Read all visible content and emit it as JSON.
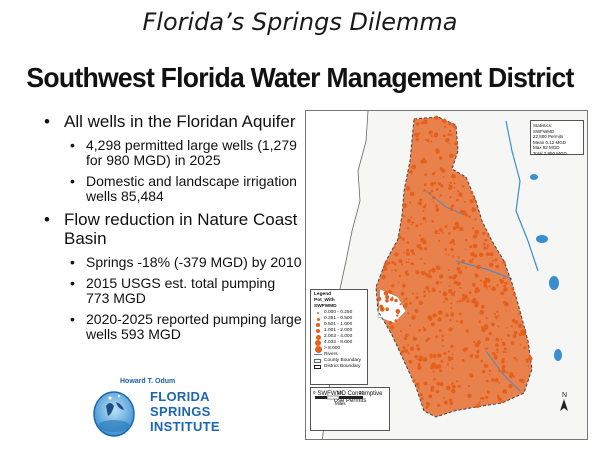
{
  "slide_title": "Florida’s Springs Dilemma",
  "section_title": "Southwest Florida Water Management District",
  "bullets": [
    {
      "text": "All wells in the Floridan Aquifer",
      "sub": [
        "4,298 permitted large wells (1,279 for 980 MGD) in 2025",
        "Domestic and landscape irrigation wells 85,484"
      ]
    },
    {
      "text": "Flow reduction in Nature Coast Basin",
      "sub": [
        "Springs -18% (-379 MGD) by 2010",
        "2015 USGS est. total pumping 773 MGD",
        "2020-2025 reported pumping large wells 593 MGD"
      ]
    }
  ],
  "logo": {
    "top_text": "Howard T. Odum",
    "line1": "FLORIDA",
    "line2": "SPRINGS",
    "line3": "INSTITUTE"
  },
  "map": {
    "stats_title": "Statistics:",
    "stats_lines": [
      "SWFWMD",
      "22,800 Permits",
      "Mean 0.12 MGD",
      "Max 82 MGD",
      "Total 2,850 MGD"
    ],
    "legend_title": "Legend",
    "legend_field": "Pot_With",
    "legend_layer": "SWFWMD",
    "legend_classes": [
      "0.000 - 0.250",
      "0.251 - 0.500",
      "0.501 - 1.000",
      "1.001 - 2.000",
      "2.003 - 4.000",
      "4.032 - 8.000",
      "> 8.000"
    ],
    "legend_rivers": "Rivers",
    "legend_county": "County Boundary",
    "legend_district": "District Boundary",
    "map_title": "SWFWMD Consumptive Use Permits",
    "scale_labels": [
      "0",
      "10",
      "20"
    ],
    "scale_unit": "Miles",
    "north_label": "N",
    "colors": {
      "wells": "#e5601c",
      "water": "#3a8ed0",
      "land": "#f6f6f4"
    }
  }
}
